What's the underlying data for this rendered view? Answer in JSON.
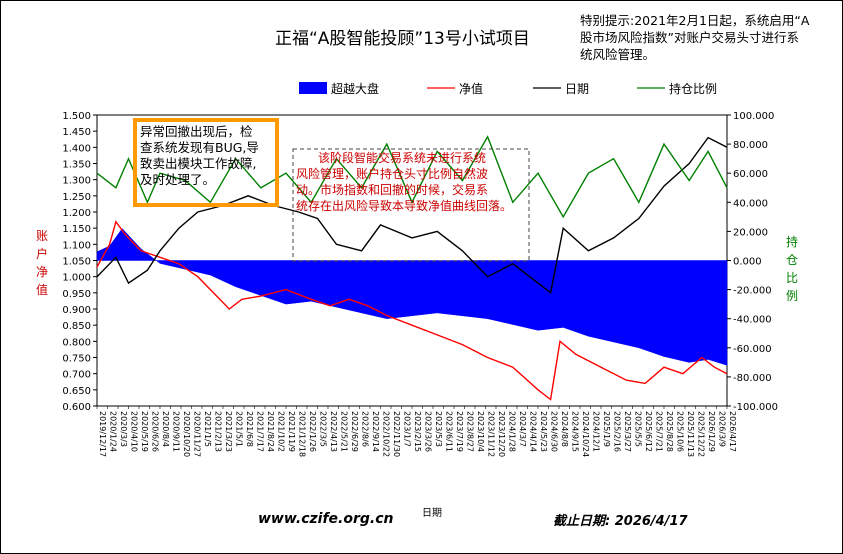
{
  "title": "正福“A股智能投顾”13号小试项目",
  "notice_lines": [
    "特别提示:2021年2月1日起，系统启用“A",
    "股市场风险指数”对账户交易头寸进行系",
    "统风险管理。"
  ],
  "annotation_left_lines": [
    "异常回撤出现后，检",
    "查系统发现有BUG,导",
    "致卖出模块工作故障,",
    "及时处理了。"
  ],
  "annotation_center_lines": [
    "该阶段智能交易系统未进行系统",
    "风险管理，账户持仓头寸比例自然波",
    "动。市场指数和回撤的时候，交易系",
    "统存在出风险导致本导致净值曲线回落。"
  ],
  "legend": [
    {
      "label": "超越大盘",
      "kind": "area",
      "color": "#0000ff"
    },
    {
      "label": "净值",
      "kind": "line",
      "color": "#ff0000"
    },
    {
      "label": "日期",
      "kind": "line",
      "color": "#000000"
    },
    {
      "label": "持仓比例",
      "kind": "line",
      "color": "#008000"
    }
  ],
  "footer": {
    "website": "www.czife.org.cn",
    "xlabel": "日期",
    "cutoff": "截止日期: 2026/4/17"
  },
  "chart_data": {
    "type": "line",
    "ylabel": "账户净值",
    "y2label": "持仓比例",
    "xlabel": "日期",
    "ylim": [
      0.6,
      1.5
    ],
    "y2lim": [
      -100,
      100
    ],
    "y_ticks": [
      "1.500",
      "1.450",
      "1.400",
      "1.350",
      "1.300",
      "1.250",
      "1.200",
      "1.150",
      "1.100",
      "1.050",
      "1.000",
      "0.950",
      "0.900",
      "0.850",
      "0.800",
      "0.750",
      "0.700",
      "0.650",
      "0.600"
    ],
    "y2_ticks": [
      "100.000",
      "80.000",
      "60.000",
      "40.000",
      "20.000",
      "0.000",
      "-20.000",
      "-40.000",
      "-60.000",
      "-80.000",
      "-100.000"
    ],
    "x_start": "2019/12/17",
    "x_end": "2026/4/17",
    "grid": false,
    "legend_position": "top",
    "series": [
      {
        "name": "超越大盘",
        "axis": "right",
        "type": "area",
        "color": "#0000ff",
        "points": [
          [
            0,
            6
          ],
          [
            0.02,
            10
          ],
          [
            0.04,
            22
          ],
          [
            0.07,
            8
          ],
          [
            0.1,
            -2
          ],
          [
            0.14,
            -6
          ],
          [
            0.18,
            -10
          ],
          [
            0.22,
            -18
          ],
          [
            0.26,
            -24
          ],
          [
            0.3,
            -30
          ],
          [
            0.34,
            -28
          ],
          [
            0.38,
            -32
          ],
          [
            0.42,
            -36
          ],
          [
            0.46,
            -40
          ],
          [
            0.5,
            -38
          ],
          [
            0.54,
            -36
          ],
          [
            0.58,
            -38
          ],
          [
            0.62,
            -40
          ],
          [
            0.66,
            -44
          ],
          [
            0.7,
            -48
          ],
          [
            0.74,
            -46
          ],
          [
            0.78,
            -52
          ],
          [
            0.82,
            -56
          ],
          [
            0.86,
            -60
          ],
          [
            0.9,
            -66
          ],
          [
            0.94,
            -70
          ],
          [
            0.97,
            -68
          ],
          [
            1,
            -72
          ]
        ]
      },
      {
        "name": "净值",
        "axis": "left",
        "type": "line",
        "color": "#ff0000",
        "points": [
          [
            0,
            1.03
          ],
          [
            0.02,
            1.1
          ],
          [
            0.03,
            1.17
          ],
          [
            0.045,
            1.13
          ],
          [
            0.07,
            1.08
          ],
          [
            0.1,
            1.06
          ],
          [
            0.13,
            1.04
          ],
          [
            0.16,
            1.0
          ],
          [
            0.19,
            0.94
          ],
          [
            0.21,
            0.9
          ],
          [
            0.23,
            0.93
          ],
          [
            0.26,
            0.94
          ],
          [
            0.3,
            0.96
          ],
          [
            0.34,
            0.93
          ],
          [
            0.37,
            0.91
          ],
          [
            0.4,
            0.93
          ],
          [
            0.43,
            0.91
          ],
          [
            0.46,
            0.88
          ],
          [
            0.5,
            0.85
          ],
          [
            0.54,
            0.82
          ],
          [
            0.58,
            0.79
          ],
          [
            0.62,
            0.75
          ],
          [
            0.66,
            0.72
          ],
          [
            0.7,
            0.65
          ],
          [
            0.72,
            0.62
          ],
          [
            0.735,
            0.8
          ],
          [
            0.76,
            0.76
          ],
          [
            0.8,
            0.72
          ],
          [
            0.84,
            0.68
          ],
          [
            0.87,
            0.67
          ],
          [
            0.9,
            0.72
          ],
          [
            0.93,
            0.7
          ],
          [
            0.96,
            0.75
          ],
          [
            0.98,
            0.72
          ],
          [
            1,
            0.7
          ]
        ]
      },
      {
        "name": "日期",
        "axis": "left",
        "type": "line",
        "color": "#000000",
        "points": [
          [
            0,
            1.0
          ],
          [
            0.03,
            1.06
          ],
          [
            0.05,
            0.98
          ],
          [
            0.08,
            1.02
          ],
          [
            0.1,
            1.08
          ],
          [
            0.13,
            1.15
          ],
          [
            0.16,
            1.2
          ],
          [
            0.2,
            1.22
          ],
          [
            0.24,
            1.25
          ],
          [
            0.28,
            1.22
          ],
          [
            0.32,
            1.2
          ],
          [
            0.35,
            1.18
          ],
          [
            0.38,
            1.1
          ],
          [
            0.42,
            1.08
          ],
          [
            0.45,
            1.16
          ],
          [
            0.5,
            1.12
          ],
          [
            0.54,
            1.14
          ],
          [
            0.58,
            1.08
          ],
          [
            0.62,
            1.0
          ],
          [
            0.66,
            1.04
          ],
          [
            0.7,
            0.98
          ],
          [
            0.72,
            0.95
          ],
          [
            0.74,
            1.15
          ],
          [
            0.78,
            1.08
          ],
          [
            0.82,
            1.12
          ],
          [
            0.86,
            1.18
          ],
          [
            0.9,
            1.28
          ],
          [
            0.94,
            1.35
          ],
          [
            0.97,
            1.43
          ],
          [
            1,
            1.4
          ]
        ]
      },
      {
        "name": "持仓比例",
        "axis": "right",
        "type": "line",
        "color": "#008000",
        "points": [
          [
            0,
            60
          ],
          [
            0.03,
            50
          ],
          [
            0.05,
            70
          ],
          [
            0.08,
            40
          ],
          [
            0.1,
            60
          ],
          [
            0.14,
            55
          ],
          [
            0.18,
            40
          ],
          [
            0.22,
            70
          ],
          [
            0.26,
            50
          ],
          [
            0.3,
            60
          ],
          [
            0.34,
            40
          ],
          [
            0.38,
            70
          ],
          [
            0.42,
            50
          ],
          [
            0.46,
            80
          ],
          [
            0.5,
            40
          ],
          [
            0.54,
            75
          ],
          [
            0.58,
            55
          ],
          [
            0.62,
            85
          ],
          [
            0.66,
            40
          ],
          [
            0.7,
            60
          ],
          [
            0.74,
            30
          ],
          [
            0.78,
            60
          ],
          [
            0.82,
            70
          ],
          [
            0.86,
            40
          ],
          [
            0.9,
            80
          ],
          [
            0.94,
            55
          ],
          [
            0.97,
            75
          ],
          [
            1,
            50
          ]
        ]
      }
    ]
  }
}
